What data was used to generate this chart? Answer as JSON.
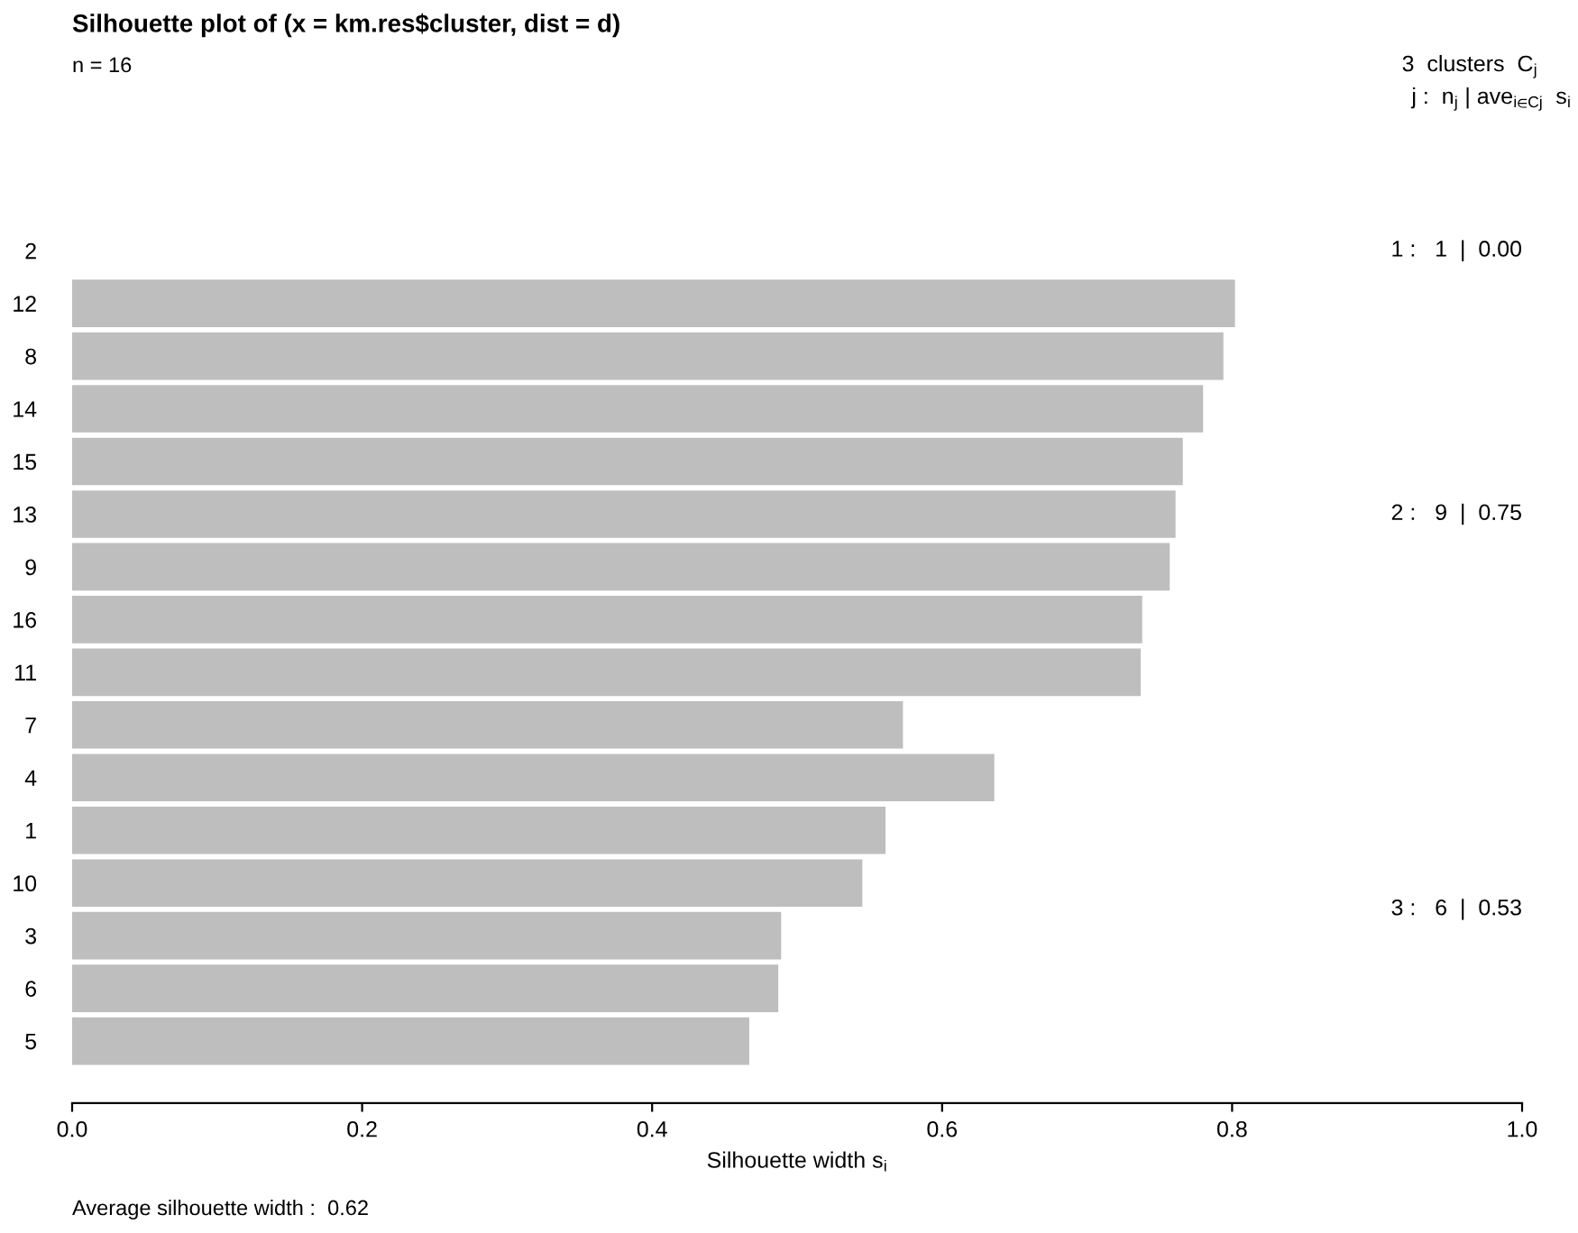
{
  "chart_data": {
    "type": "bar",
    "orientation": "horizontal",
    "title": "Silhouette plot of (x = km.res$cluster, dist = d)",
    "subtitle": "n = 16",
    "xlabel": "Silhouette width s$_{i}$",
    "categories": [
      "2",
      "12",
      "8",
      "14",
      "15",
      "13",
      "9",
      "16",
      "11",
      "7",
      "4",
      "1",
      "10",
      "3",
      "6",
      "5"
    ],
    "values": [
      0,
      0.802,
      0.794,
      0.78,
      0.766,
      0.761,
      0.757,
      0.738,
      0.737,
      0.573,
      0.636,
      0.561,
      0.545,
      0.489,
      0.487,
      0.467
    ],
    "color": "#bebebe",
    "xlim": [
      0,
      1
    ],
    "xticks": [
      {
        "value": 0,
        "label": "0.0"
      },
      {
        "value": 0.2,
        "label": "0.2"
      },
      {
        "value": 0.4,
        "label": "0.4"
      },
      {
        "value": 0.6,
        "label": "0.6"
      },
      {
        "value": 0.8,
        "label": "0.8"
      },
      {
        "value": 1,
        "label": "1.0"
      }
    ],
    "grid": false,
    "legend": false,
    "annotations": [
      "3  clusters  C$_{j}$",
      "j :  n$_{j}$ | ave$_{i∈Cj}$  s$_{i}$",
      "1 :   1  |  0.00",
      "2 :   9  |  0.75",
      "3 :   6  |  0.53",
      "Average silhouette width :  0.62"
    ]
  }
}
